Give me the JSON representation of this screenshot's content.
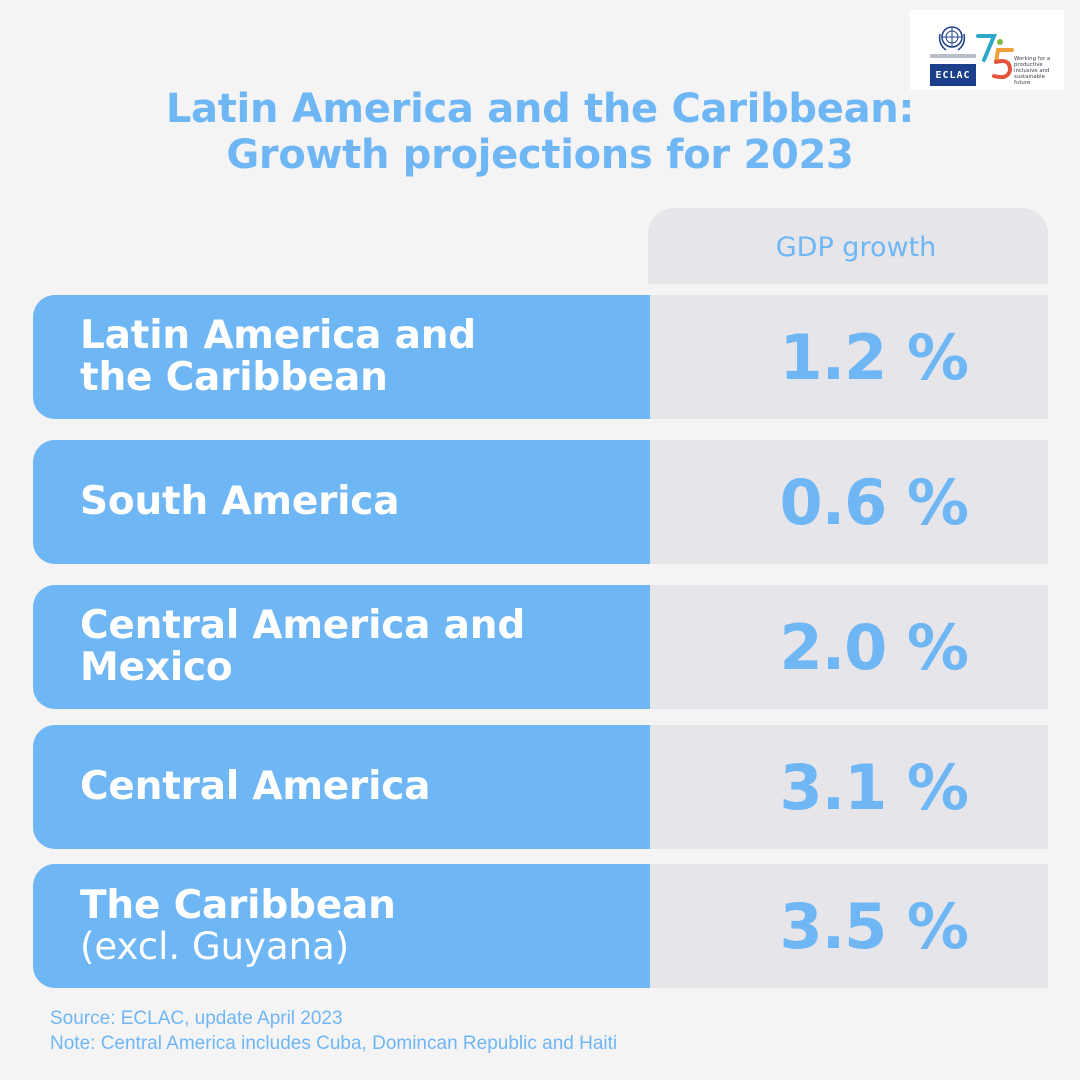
{
  "logo": {
    "brand": "ECLAC",
    "anniversary": "75",
    "tagline": "Working for a productive inclusive and sustainable future"
  },
  "title": {
    "line1": "Latin America and the Caribbean:",
    "line2": "Growth projections for 2023"
  },
  "column_header": "GDP growth",
  "footnote": {
    "source": "Source: ECLAC, update April 2023",
    "note": "Note: Central America includes Cuba, Domincan Republic and Haiti"
  },
  "colors": {
    "accent": "#6fb6f5",
    "panel": "#e6e6ea",
    "background": "#f4f4f5",
    "eclac_blue": "#1c3f8c"
  },
  "chart_data": {
    "type": "table",
    "title": "Latin America and the Caribbean: Growth projections for 2023",
    "columns": [
      "",
      "GDP growth"
    ],
    "rows": [
      {
        "region": "Latin America and the Caribbean",
        "line1": "Latin America and",
        "line2": "the Caribbean",
        "sub": "",
        "value": 1.2,
        "display": "1.2 %"
      },
      {
        "region": "South America",
        "line1": "South America",
        "line2": "",
        "sub": "",
        "value": 0.6,
        "display": "0.6 %"
      },
      {
        "region": "Central America and Mexico",
        "line1": "Central America and",
        "line2": "Mexico",
        "sub": "",
        "value": 2.0,
        "display": "2.0 %"
      },
      {
        "region": "Central America",
        "line1": "Central America",
        "line2": "",
        "sub": "",
        "value": 3.1,
        "display": "3.1 %"
      },
      {
        "region": "The Caribbean (excl. Guyana)",
        "line1": "The Caribbean",
        "line2": "",
        "sub": "(excl. Guyana)",
        "value": 3.5,
        "display": "3.5 %"
      }
    ]
  }
}
